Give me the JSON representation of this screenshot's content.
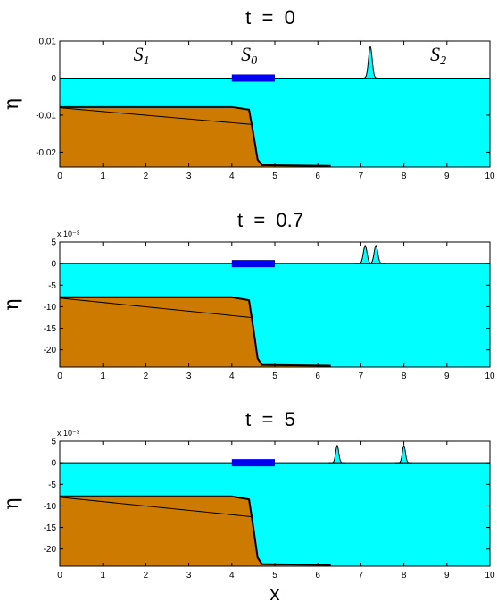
{
  "colors": {
    "water": "#00ffff",
    "sediment": "#cc7a00",
    "bar": "#0000ee",
    "axis": "#000000",
    "background": "#ffffff"
  },
  "chart_data": [
    {
      "type": "area",
      "title": "t  =  0",
      "xlabel": "",
      "ylabel": "η",
      "multiplier": "",
      "xlim": [
        0,
        10
      ],
      "ylim": [
        -0.024,
        0.01
      ],
      "x_ticks": [
        "0",
        "1",
        "2",
        "3",
        "4",
        "5",
        "6",
        "7",
        "8",
        "9",
        "10"
      ],
      "y_ticks": [
        {
          "value": 0.01,
          "label": "0.01"
        },
        {
          "value": 0,
          "label": "0"
        },
        {
          "value": -0.01,
          "label": "-0.01"
        },
        {
          "value": -0.02,
          "label": "-0.02"
        }
      ],
      "region_labels": [
        {
          "main": "S",
          "sub": "1",
          "x": 1.9,
          "y": 0.0047
        },
        {
          "main": "S",
          "sub": "0",
          "x": 4.4,
          "y": 0.0047
        },
        {
          "main": "S",
          "sub": "2",
          "x": 8.8,
          "y": 0.0047
        }
      ],
      "source_bar": {
        "x_start": 4.0,
        "x_end": 5.0,
        "y": 0
      },
      "waves": [
        {
          "center": 7.22,
          "amplitude": 0.0085,
          "width": 0.06
        }
      ],
      "sediment_top": {
        "x": [
          0,
          4.0,
          4.4,
          4.5,
          4.6,
          4.7,
          6.3
        ],
        "y": [
          -0.0078,
          -0.0078,
          -0.0085,
          -0.015,
          -0.022,
          -0.0235,
          -0.0237
        ]
      },
      "thin_line": {
        "x": [
          0,
          4.45
        ],
        "y": [
          -0.008,
          -0.0125
        ]
      }
    },
    {
      "type": "area",
      "title": "t  =  0.7",
      "xlabel": "",
      "ylabel": "η",
      "multiplier": "x 10⁻³",
      "xlim": [
        0,
        10
      ],
      "ylim": [
        -24,
        5
      ],
      "x_ticks": [
        "0",
        "1",
        "2",
        "3",
        "4",
        "5",
        "6",
        "7",
        "8",
        "9",
        "10"
      ],
      "y_ticks": [
        {
          "value": 5,
          "label": "5"
        },
        {
          "value": 0,
          "label": "0"
        },
        {
          "value": -5,
          "label": "-5"
        },
        {
          "value": -10,
          "label": "-10"
        },
        {
          "value": -15,
          "label": "-15"
        },
        {
          "value": -20,
          "label": "-20"
        }
      ],
      "region_labels": [],
      "source_bar": {
        "x_start": 4.0,
        "x_end": 5.0,
        "y": 0
      },
      "waves": [
        {
          "center": 7.1,
          "amplitude": 4.2,
          "width": 0.06
        },
        {
          "center": 7.35,
          "amplitude": 4.2,
          "width": 0.06
        }
      ],
      "sediment_top": {
        "x": [
          0,
          4.0,
          4.4,
          4.5,
          4.6,
          4.7,
          6.3
        ],
        "y": [
          -7.8,
          -7.8,
          -8.5,
          -15,
          -22,
          -23.5,
          -23.7
        ]
      },
      "thin_line": {
        "x": [
          0,
          4.45
        ],
        "y": [
          -8,
          -12.5
        ]
      }
    },
    {
      "type": "area",
      "title": "t  =  5",
      "xlabel": "x",
      "ylabel": "η",
      "multiplier": "x 10⁻³",
      "xlim": [
        0,
        10
      ],
      "ylim": [
        -24,
        5
      ],
      "x_ticks": [
        "0",
        "1",
        "2",
        "3",
        "4",
        "5",
        "6",
        "7",
        "8",
        "9",
        "10"
      ],
      "y_ticks": [
        {
          "value": 5,
          "label": "5"
        },
        {
          "value": 0,
          "label": "0"
        },
        {
          "value": -5,
          "label": "-5"
        },
        {
          "value": -10,
          "label": "-10"
        },
        {
          "value": -15,
          "label": "-15"
        },
        {
          "value": -20,
          "label": "-20"
        }
      ],
      "region_labels": [],
      "source_bar": {
        "x_start": 4.0,
        "x_end": 5.0,
        "y": 0
      },
      "waves": [
        {
          "center": 6.45,
          "amplitude": 4.0,
          "width": 0.05
        },
        {
          "center": 8.0,
          "amplitude": 4.0,
          "width": 0.05
        }
      ],
      "sediment_top": {
        "x": [
          0,
          4.0,
          4.4,
          4.5,
          4.6,
          4.7,
          6.3
        ],
        "y": [
          -7.8,
          -7.8,
          -8.5,
          -15,
          -22,
          -23.5,
          -23.7
        ]
      },
      "thin_line": {
        "x": [
          0,
          4.45
        ],
        "y": [
          -8,
          -12.5
        ]
      }
    }
  ]
}
